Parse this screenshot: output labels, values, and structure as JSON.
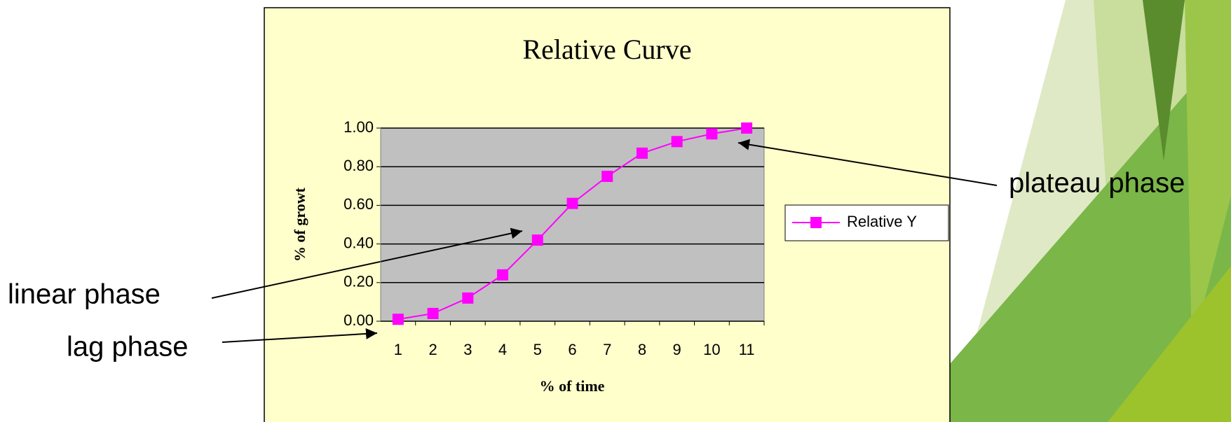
{
  "chart_data": {
    "type": "line",
    "title": "Relative Curve",
    "x_label": "% of time",
    "y_label": "% of growt",
    "categories": [
      "1",
      "2",
      "3",
      "4",
      "5",
      "6",
      "7",
      "8",
      "9",
      "10",
      "11"
    ],
    "series": [
      {
        "name": "Relative Y",
        "color": "#ff00ff",
        "values": [
          0.01,
          0.04,
          0.12,
          0.24,
          0.42,
          0.61,
          0.75,
          0.87,
          0.93,
          0.97,
          1.0
        ]
      }
    ],
    "ylim": [
      0,
      1
    ],
    "yticks": [
      {
        "value": 0,
        "label": "0.00"
      },
      {
        "value": 0.2,
        "label": "0.20"
      },
      {
        "value": 0.4,
        "label": "0.40"
      },
      {
        "value": 0.6,
        "label": "0.60"
      },
      {
        "value": 0.8,
        "label": "0.80"
      },
      {
        "value": 1,
        "label": "1.00"
      }
    ],
    "grid": true,
    "legend": "right",
    "annotations": [
      "plateau phase",
      "linear phase",
      "lag phase"
    ]
  }
}
